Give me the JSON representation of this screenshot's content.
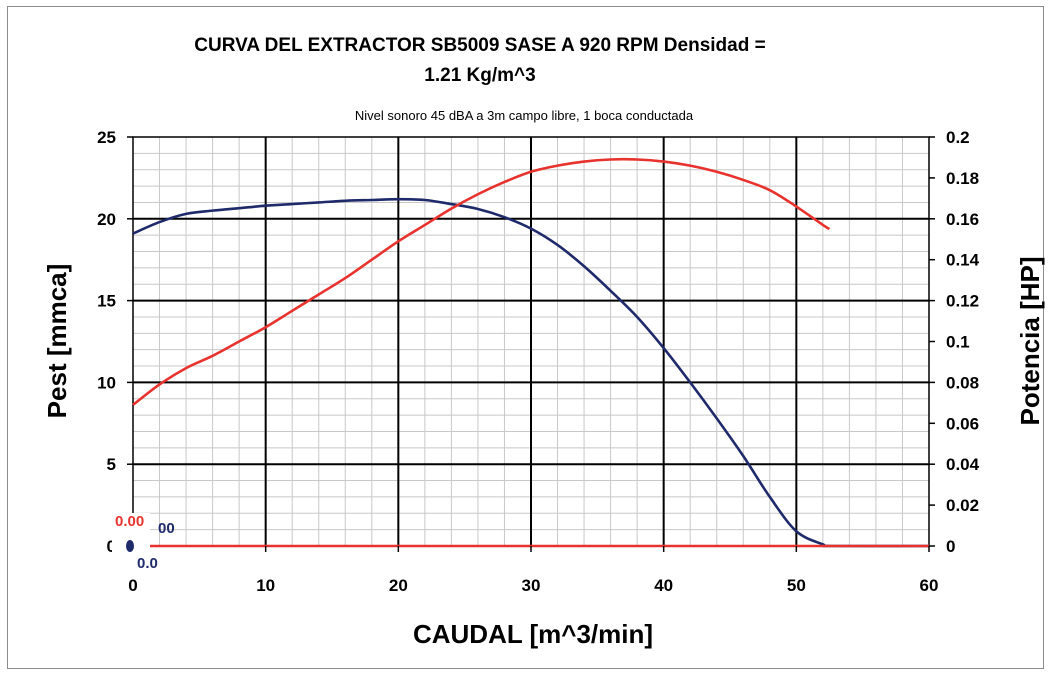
{
  "chart_data": {
    "type": "line",
    "title_line1": "CURVA DEL EXTRACTOR SB5009 SASE A 920 RPM Densidad =",
    "title_line2": "1.21 Kg/m^3",
    "subtitle": "Nivel sonoro 45 dBA a 3m campo libre, 1 boca conductada",
    "xlabel": "CAUDAL [m^3/min]",
    "ylabel": "Pest [mmca]",
    "y2label": "Potencia [HP]",
    "xlim": [
      0,
      60
    ],
    "ylim": [
      0,
      25
    ],
    "y2lim": [
      0,
      0.2
    ],
    "x_ticks": [
      "0",
      "10",
      "20",
      "30",
      "40",
      "50",
      "60"
    ],
    "y_ticks": [
      "0",
      "5",
      "10",
      "15",
      "20",
      "25"
    ],
    "y2_ticks": [
      "0",
      "0.02",
      "0.04",
      "0.06",
      "0.08",
      "0.1",
      "0.12",
      "0.14",
      "0.16",
      "0.18",
      "0.2"
    ],
    "grid": true,
    "series": [
      {
        "axis": "left",
        "color": "#1f2a6b",
        "x": [
          0,
          2,
          4,
          6,
          8,
          10,
          12,
          14,
          16,
          18,
          20,
          22,
          24,
          26,
          28,
          30,
          32,
          34,
          36,
          38,
          40,
          42,
          44,
          46,
          48,
          50,
          52,
          52.7,
          60
        ],
        "y": [
          19.1,
          19.8,
          20.3,
          20.5,
          20.65,
          20.8,
          20.9,
          21.0,
          21.1,
          21.15,
          21.2,
          21.15,
          20.9,
          20.6,
          20.1,
          19.4,
          18.4,
          17.1,
          15.6,
          14.0,
          12.1,
          10.0,
          7.8,
          5.5,
          3.0,
          0.9,
          0.1,
          0,
          0
        ]
      },
      {
        "axis": "right",
        "color": "#e8322e",
        "x": [
          0,
          2,
          4,
          6,
          8,
          10,
          12,
          14,
          16,
          18,
          20,
          22,
          24,
          26,
          28,
          30,
          32,
          34,
          36,
          38,
          40,
          42,
          44,
          46,
          48,
          50,
          52,
          52.5
        ],
        "y": [
          0.069,
          0.079,
          0.087,
          0.093,
          0.1,
          0.107,
          0.115,
          0.123,
          0.131,
          0.14,
          0.149,
          0.157,
          0.165,
          0.172,
          0.178,
          0.183,
          0.186,
          0.188,
          0.189,
          0.189,
          0.188,
          0.186,
          0.183,
          0.179,
          0.174,
          0.166,
          0.157,
          0.155
        ]
      },
      {
        "axis": "left",
        "color": "#e8322e",
        "x": [
          0,
          60
        ],
        "y": [
          0,
          0
        ]
      }
    ],
    "markers": [
      {
        "x": 0,
        "y": 0,
        "color": "#1f2a6b"
      }
    ],
    "marker_labels": [
      {
        "text": "0.00",
        "color": "#e8322e"
      },
      {
        "text": "00",
        "color": "#1f2a6b"
      },
      {
        "text": "0.0",
        "color": "#1f2a6b"
      }
    ]
  }
}
